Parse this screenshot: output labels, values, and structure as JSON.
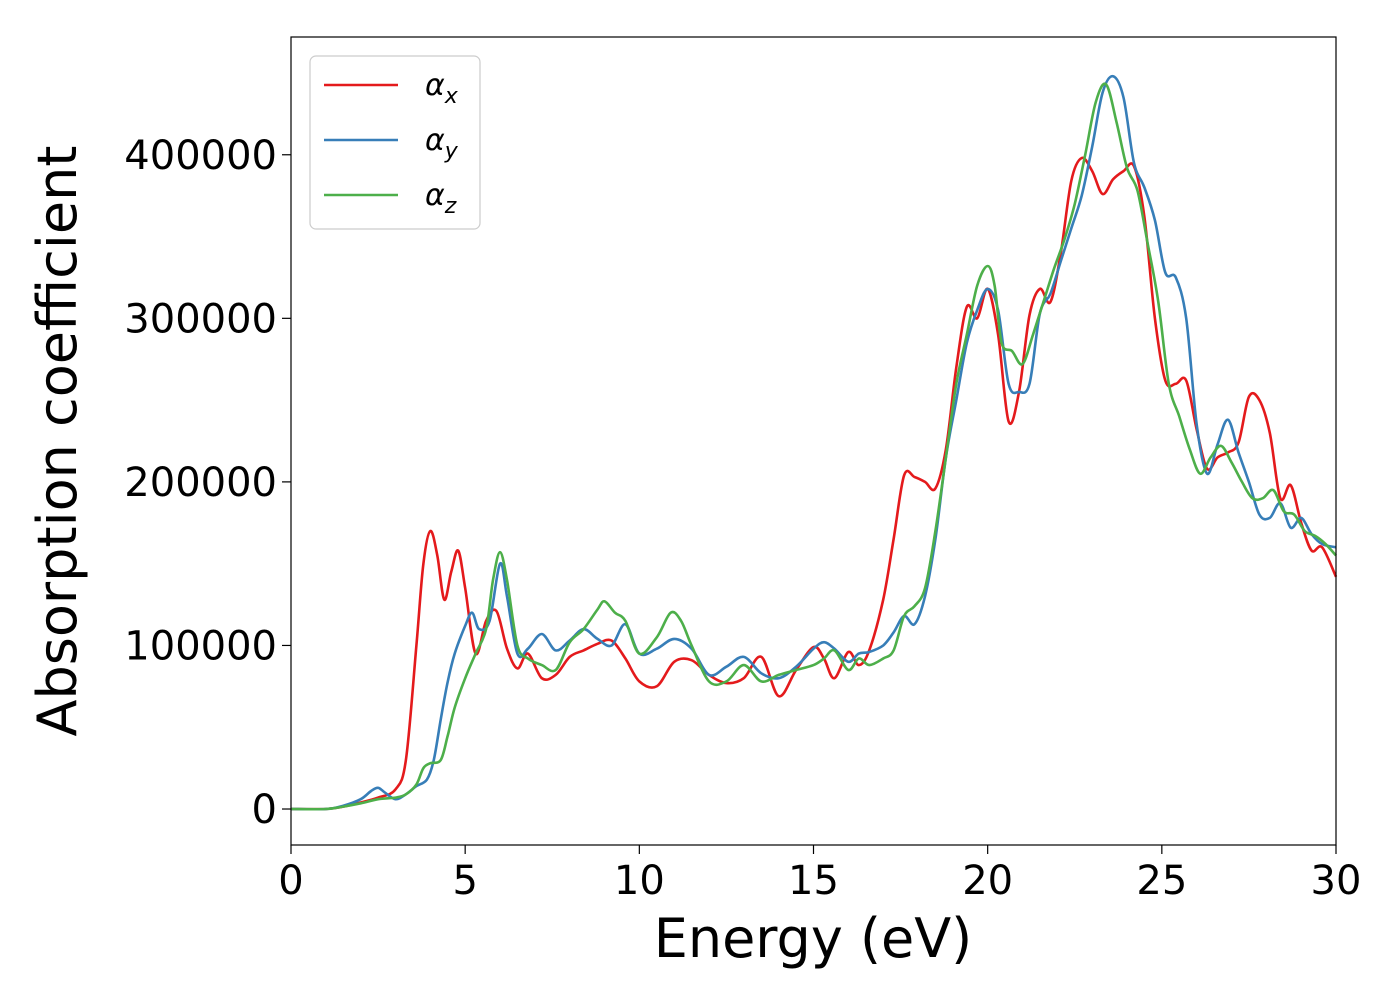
{
  "chart_data": {
    "type": "line",
    "xlabel": "Energy (eV)",
    "ylabel": "Absorption coefficient",
    "xlim": [
      0,
      30
    ],
    "ylim": [
      -22000,
      472000
    ],
    "x_ticks": [
      0,
      5,
      10,
      15,
      20,
      25,
      30
    ],
    "x_tick_labels": [
      "0",
      "5",
      "10",
      "15",
      "20",
      "25",
      "30"
    ],
    "y_ticks": [
      0,
      100000,
      200000,
      300000,
      400000
    ],
    "y_tick_labels": [
      "0",
      "100000",
      "200000",
      "300000",
      "400000"
    ],
    "grid": false,
    "legend_position": "top-left",
    "series": [
      {
        "name": "αx",
        "symbol": "α",
        "subscript": "x",
        "color": "#e41a1c",
        "x": [
          0,
          1,
          1.5,
          2,
          2.5,
          3,
          3.3,
          3.6,
          3.8,
          4.0,
          4.2,
          4.4,
          4.6,
          4.8,
          5.0,
          5.3,
          5.6,
          5.9,
          6.2,
          6.5,
          6.8,
          7.2,
          7.6,
          8.0,
          8.4,
          8.8,
          9.2,
          9.6,
          10.0,
          10.5,
          11.0,
          11.5,
          12.0,
          12.5,
          13.0,
          13.5,
          14.0,
          14.5,
          15.0,
          15.3,
          15.6,
          16.0,
          16.3,
          16.6,
          17.0,
          17.3,
          17.6,
          17.9,
          18.2,
          18.5,
          18.8,
          19.1,
          19.4,
          19.7,
          20.0,
          20.3,
          20.6,
          20.9,
          21.2,
          21.5,
          21.8,
          22.1,
          22.4,
          22.7,
          23.0,
          23.3,
          23.6,
          23.9,
          24.2,
          24.5,
          24.8,
          25.1,
          25.4,
          25.7,
          26.0,
          26.3,
          26.6,
          26.9,
          27.2,
          27.5,
          27.8,
          28.1,
          28.4,
          28.7,
          29.0,
          29.3,
          29.6,
          30.0
        ],
        "y": [
          0,
          0,
          1500,
          4000,
          7000,
          12000,
          30000,
          100000,
          150000,
          170000,
          155000,
          128000,
          145000,
          158000,
          135000,
          95000,
          115000,
          121000,
          98000,
          86000,
          95000,
          80000,
          82000,
          93000,
          97000,
          101000,
          103000,
          92000,
          78000,
          75000,
          90000,
          91000,
          82000,
          77000,
          80000,
          93000,
          69000,
          85000,
          99000,
          92000,
          80000,
          96000,
          88000,
          97000,
          128000,
          165000,
          204000,
          203000,
          200000,
          196000,
          220000,
          270000,
          307000,
          300000,
          318000,
          290000,
          237000,
          255000,
          302000,
          318000,
          310000,
          340000,
          384000,
          398000,
          390000,
          376000,
          385000,
          390000,
          393000,
          362000,
          300000,
          262000,
          260000,
          262000,
          232000,
          208000,
          215000,
          218000,
          224000,
          252000,
          250000,
          230000,
          190000,
          198000,
          175000,
          158000,
          160000,
          142000
        ]
      },
      {
        "name": "αy",
        "symbol": "α",
        "subscript": "y",
        "color": "#377eb8",
        "x": [
          0,
          1,
          1.5,
          2,
          2.3,
          2.5,
          2.7,
          3.0,
          3.3,
          3.6,
          3.9,
          4.1,
          4.3,
          4.5,
          4.7,
          5.0,
          5.2,
          5.4,
          5.7,
          6.0,
          6.2,
          6.5,
          6.8,
          7.2,
          7.6,
          8.0,
          8.4,
          8.8,
          9.2,
          9.6,
          10.0,
          10.5,
          11.0,
          11.5,
          12.0,
          12.5,
          13.0,
          13.5,
          14.0,
          14.5,
          15.0,
          15.3,
          15.6,
          16.0,
          16.3,
          16.6,
          17.0,
          17.3,
          17.6,
          17.9,
          18.2,
          18.5,
          18.8,
          19.1,
          19.4,
          19.7,
          20.0,
          20.3,
          20.6,
          20.9,
          21.2,
          21.5,
          21.8,
          22.1,
          22.4,
          22.7,
          23.0,
          23.3,
          23.6,
          23.9,
          24.2,
          24.5,
          24.8,
          25.1,
          25.4,
          25.7,
          26.0,
          26.3,
          26.6,
          26.9,
          27.2,
          27.5,
          27.8,
          28.1,
          28.4,
          28.7,
          29.0,
          29.3,
          29.6,
          30.0
        ],
        "y": [
          0,
          0,
          2000,
          6000,
          11000,
          13000,
          10000,
          6000,
          9000,
          14000,
          18000,
          30000,
          55000,
          78000,
          95000,
          112000,
          120000,
          110000,
          115000,
          150000,
          130000,
          95000,
          98000,
          107000,
          97000,
          103000,
          110000,
          104000,
          100000,
          113000,
          95000,
          98000,
          104000,
          98000,
          82000,
          87000,
          93000,
          83000,
          80000,
          87000,
          98000,
          102000,
          98000,
          90000,
          95000,
          96000,
          100000,
          108000,
          118000,
          113000,
          130000,
          165000,
          215000,
          250000,
          285000,
          305000,
          318000,
          305000,
          260000,
          255000,
          260000,
          303000,
          315000,
          335000,
          355000,
          375000,
          405000,
          438000,
          448000,
          435000,
          395000,
          380000,
          360000,
          328000,
          325000,
          300000,
          235000,
          205000,
          223000,
          238000,
          218000,
          200000,
          180000,
          178000,
          187000,
          172000,
          178000,
          168000,
          162000,
          160000
        ]
      },
      {
        "name": "αz",
        "symbol": "α",
        "subscript": "z",
        "color": "#4daf4a",
        "x": [
          0,
          1,
          1.5,
          2,
          2.5,
          3.0,
          3.3,
          3.6,
          3.8,
          4.0,
          4.3,
          4.5,
          4.7,
          5.0,
          5.3,
          5.6,
          5.8,
          6.0,
          6.2,
          6.5,
          6.8,
          7.2,
          7.6,
          8.0,
          8.4,
          8.8,
          9.0,
          9.3,
          9.6,
          10.0,
          10.5,
          10.9,
          11.2,
          11.5,
          12.0,
          12.5,
          13.0,
          13.5,
          14.0,
          14.5,
          15.0,
          15.3,
          15.6,
          16.0,
          16.3,
          16.6,
          17.0,
          17.3,
          17.6,
          17.9,
          18.2,
          18.5,
          18.8,
          19.1,
          19.4,
          19.7,
          20.0,
          20.2,
          20.4,
          20.7,
          21.0,
          21.3,
          21.6,
          21.9,
          22.2,
          22.5,
          22.8,
          23.1,
          23.4,
          23.7,
          24.0,
          24.3,
          24.6,
          24.9,
          25.2,
          25.5,
          25.8,
          26.1,
          26.4,
          26.7,
          27.0,
          27.3,
          27.6,
          27.9,
          28.2,
          28.5,
          28.8,
          29.1,
          29.4,
          29.7,
          30.0
        ],
        "y": [
          0,
          0,
          1500,
          3500,
          6000,
          7000,
          9000,
          15000,
          25000,
          28000,
          30000,
          45000,
          62000,
          80000,
          95000,
          110000,
          140000,
          157000,
          140000,
          100000,
          92000,
          88000,
          85000,
          102000,
          110000,
          122000,
          127000,
          120000,
          115000,
          95000,
          105000,
          120000,
          115000,
          100000,
          78000,
          78000,
          88000,
          78000,
          82000,
          85000,
          88000,
          92000,
          97000,
          85000,
          92000,
          88000,
          92000,
          97000,
          118000,
          124000,
          135000,
          170000,
          215000,
          260000,
          290000,
          320000,
          332000,
          320000,
          285000,
          280000,
          272000,
          290000,
          310000,
          330000,
          348000,
          370000,
          400000,
          432000,
          443000,
          420000,
          392000,
          378000,
          345000,
          310000,
          260000,
          240000,
          220000,
          205000,
          215000,
          222000,
          212000,
          200000,
          190000,
          190000,
          195000,
          182000,
          180000,
          170000,
          167000,
          162000,
          155000
        ]
      }
    ]
  }
}
